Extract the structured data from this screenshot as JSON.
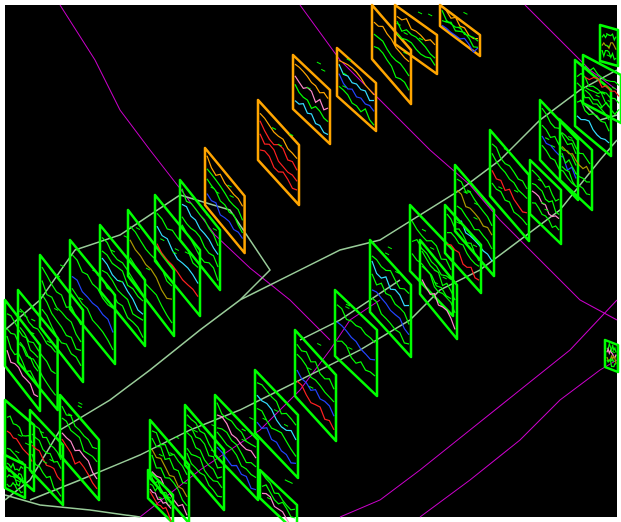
{
  "viewport": {
    "background": "#000000",
    "frame_color": "#ffffff"
  },
  "colors": {
    "section_frame": "#00ff00",
    "highlighted_frame": "#ffa500",
    "alignment_line": "#cc00cc",
    "corridor_outline": "#99cc99",
    "profile_red": "#ff2020",
    "profile_pink": "#ff88cc",
    "profile_blue": "#2244ff",
    "profile_cyan": "#33ddff",
    "profile_olive": "#aa9900"
  },
  "groups": {
    "upper_left_corridor": {
      "frames": 12,
      "highlighted": 0
    },
    "highlighted_sections": {
      "frames": 7,
      "highlighted": 7
    },
    "lower_right_corridor": {
      "frames": 14,
      "highlighted": 0
    },
    "far_right_corridor": {
      "frames": 7,
      "highlighted": 0
    }
  }
}
